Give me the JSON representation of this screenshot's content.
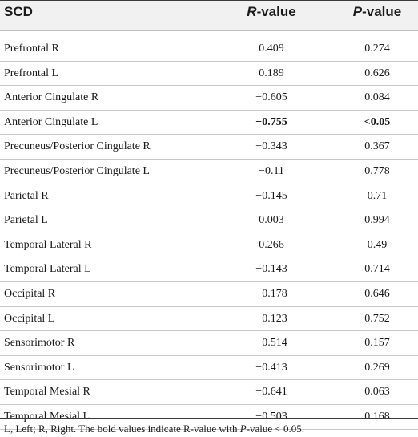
{
  "table": {
    "headers": {
      "scd": "SCD",
      "r_italic": "R",
      "r_suffix": "-value",
      "p_italic": "P",
      "p_suffix": "-value"
    },
    "rows": [
      {
        "region": "Prefrontal R",
        "r": "0.409",
        "p": "0.274",
        "bold": false
      },
      {
        "region": "Prefrontal L",
        "r": "0.189",
        "p": "0.626",
        "bold": false
      },
      {
        "region": "Anterior Cingulate R",
        "r": "−0.605",
        "p": "0.084",
        "bold": false
      },
      {
        "region": "Anterior Cingulate L",
        "r": "−0.755",
        "p": "<0.05",
        "bold": true
      },
      {
        "region": "Precuneus/Posterior Cingulate R",
        "r": "−0.343",
        "p": "0.367",
        "bold": false
      },
      {
        "region": "Precuneus/Posterior Cingulate L",
        "r": "−0.11",
        "p": "0.778",
        "bold": false
      },
      {
        "region": "Parietal R",
        "r": "−0.145",
        "p": "0.71",
        "bold": false
      },
      {
        "region": "Parietal L",
        "r": "0.003",
        "p": "0.994",
        "bold": false
      },
      {
        "region": "Temporal Lateral R",
        "r": "0.266",
        "p": "0.49",
        "bold": false
      },
      {
        "region": "Temporal Lateral L",
        "r": "−0.143",
        "p": "0.714",
        "bold": false
      },
      {
        "region": "Occipital R",
        "r": "−0.178",
        "p": "0.646",
        "bold": false
      },
      {
        "region": "Occipital L",
        "r": "−0.123",
        "p": "0.752",
        "bold": false
      },
      {
        "region": "Sensorimotor R",
        "r": "−0.514",
        "p": "0.157",
        "bold": false
      },
      {
        "region": "Sensorimotor L",
        "r": "−0.413",
        "p": "0.269",
        "bold": false
      },
      {
        "region": "Temporal Mesial R",
        "r": "−0.641",
        "p": "0.063",
        "bold": false
      },
      {
        "region": "Temporal Mesial L",
        "r": "−0.503",
        "p": "0.168",
        "bold": false
      }
    ]
  },
  "footnote": {
    "before": "L, Left; R, Right. The bold values indicate R-value with ",
    "italic": "P",
    "after": "-value < 0.05."
  }
}
